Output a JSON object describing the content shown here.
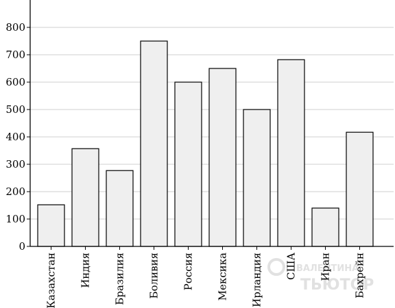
{
  "chart_data": {
    "type": "bar",
    "categories": [
      "Казахстан",
      "Индия",
      "Бразилия",
      "Боливия",
      "Россия",
      "Мексика",
      "Ирландия",
      "США",
      "Иран",
      "Бахрейн"
    ],
    "values": [
      152,
      357,
      277,
      750,
      600,
      650,
      500,
      682,
      140,
      417
    ],
    "title": "",
    "xlabel": "",
    "ylabel": "",
    "ylim": [
      0,
      850
    ],
    "yticks": [
      0,
      100,
      200,
      300,
      400,
      500,
      600,
      700,
      800
    ],
    "ytick_labels": [
      "0",
      "100",
      "200",
      "300",
      "400",
      "500",
      "600",
      "700",
      "800"
    ],
    "grid": true,
    "bar_color": "#efefef",
    "edge_color": "#000000",
    "grid_color": "#cfcfcf"
  },
  "watermark": {
    "lines": [
      "ВАЛЕНТИНА",
      "ТЬЮТОР"
    ]
  }
}
